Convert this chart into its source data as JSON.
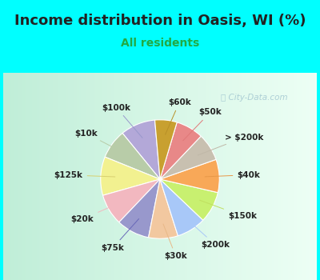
{
  "title": "Income distribution in Oasis, WI (%)",
  "subtitle": "All residents",
  "watermark": "City-Data.com",
  "labels": [
    "$100k",
    "$10k",
    "$125k",
    "$20k",
    "$75k",
    "$30k",
    "$200k",
    "$150k",
    "$40k",
    "> $200k",
    "$50k",
    "$60k"
  ],
  "values": [
    9.5,
    8.0,
    10.5,
    8.5,
    9.0,
    8.0,
    8.0,
    8.5,
    9.0,
    7.5,
    7.5,
    6.0
  ],
  "colors": [
    "#b3a8d8",
    "#b8cca8",
    "#f2f190",
    "#f2b8c0",
    "#9898cc",
    "#f2c8a0",
    "#a8c8f8",
    "#c8f070",
    "#f8a858",
    "#c8c0b0",
    "#e88888",
    "#c8a030"
  ],
  "background_top": "#00ffff",
  "background_chart_left": "#c8f0d8",
  "background_chart_right": "#f0fff8",
  "title_color": "#222222",
  "subtitle_color": "#22aa44",
  "startangle": 95,
  "label_fontsize": 7.5,
  "title_fontsize": 13,
  "subtitle_fontsize": 10,
  "label_color": "#222222",
  "line_colors": [
    "#9898cc",
    "#b8cca8",
    "#d8d070",
    "#f2b8c0",
    "#6868b8",
    "#e8b888",
    "#a8c8f8",
    "#c0e060",
    "#e89848",
    "#c0b8a8",
    "#e07878",
    "#b89028"
  ]
}
